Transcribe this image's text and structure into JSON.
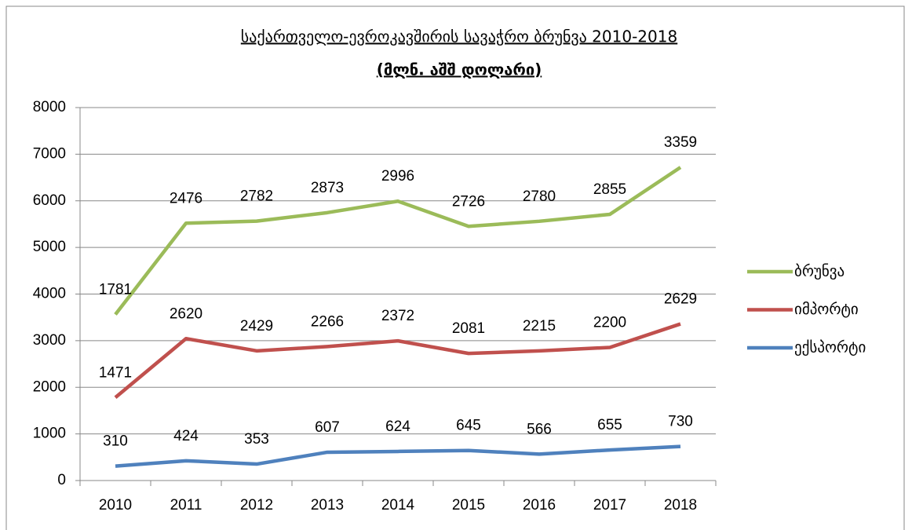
{
  "chart_data": {
    "type": "line",
    "stacked": true,
    "title": "საქართველო-ევროკავშირის სავაჭრო ბრუნვა 2010-2018",
    "subtitle": "(მლნ. აშშ დოლარი)",
    "categories": [
      "2010",
      "2011",
      "2012",
      "2013",
      "2014",
      "2015",
      "2016",
      "2017",
      "2018"
    ],
    "series": [
      {
        "name": "ბრუნვა",
        "color": "#9bbb59",
        "values": [
          1781,
          2476,
          2782,
          2873,
          2996,
          2726,
          2780,
          2855,
          3359
        ]
      },
      {
        "name": "იმპორტი",
        "color": "#c0504d",
        "values": [
          1471,
          2620,
          2429,
          2266,
          2372,
          2081,
          2215,
          2200,
          2629
        ]
      },
      {
        "name": "ექსპორტი",
        "color": "#4f81bd",
        "values": [
          310,
          424,
          353,
          607,
          624,
          645,
          566,
          655,
          730
        ]
      }
    ],
    "ylim": [
      0,
      8000
    ],
    "yticks": [
      0,
      1000,
      2000,
      3000,
      4000,
      5000,
      6000,
      7000,
      8000
    ],
    "grid": true,
    "legend": "right"
  }
}
